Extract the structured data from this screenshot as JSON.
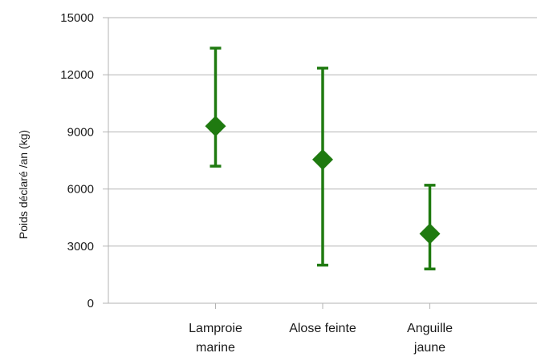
{
  "chart_data": {
    "type": "scatter",
    "ylabel": "Poids déclaré /an (kg)",
    "ylim": [
      0,
      15000
    ],
    "yticks": [
      "0",
      "3000",
      "6000",
      "9000",
      "12000",
      "15000"
    ],
    "grid": true,
    "categories": [
      {
        "lines": [
          "Lamproie",
          "marine"
        ],
        "value": 9300,
        "low": 7200,
        "high": 13400
      },
      {
        "lines": [
          "Alose feinte"
        ],
        "value": 7550,
        "low": 2000,
        "high": 12350
      },
      {
        "lines": [
          "Anguille",
          "jaune"
        ],
        "value": 3650,
        "low": 1800,
        "high": 6200
      }
    ],
    "colors": {
      "marker": "#1f7a10",
      "grid": "#b3b3b3",
      "axis": "#b3b3b3"
    }
  }
}
